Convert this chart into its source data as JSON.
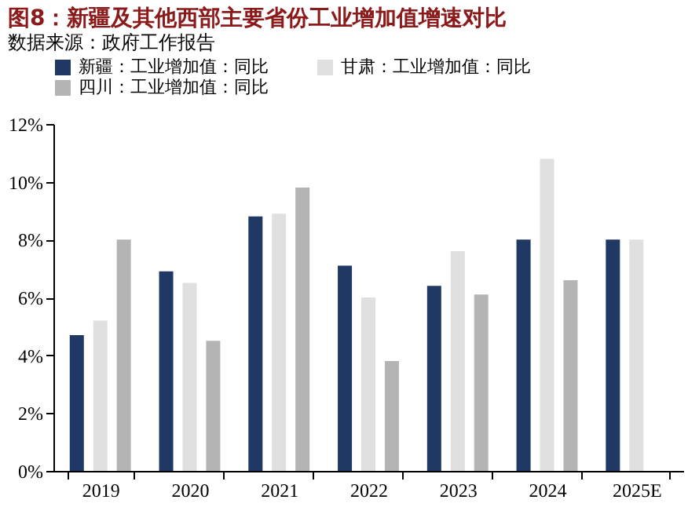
{
  "chart_data": {
    "type": "bar",
    "title": "图8：新疆及其他西部主要省份工业增加值增速对比",
    "categories": [
      "2019",
      "2020",
      "2021",
      "2022",
      "2023",
      "2024",
      "2025E"
    ],
    "series": [
      {
        "name": "新疆：工业增加值：同比",
        "color": "#1f3864",
        "values": [
          4.7,
          6.9,
          8.8,
          7.1,
          6.4,
          8.0,
          8.0
        ]
      },
      {
        "name": "甘肃：工业增加值：同比",
        "color": "#e0e0e0",
        "values": [
          5.2,
          6.5,
          8.9,
          6.0,
          7.6,
          10.8,
          8.0
        ]
      },
      {
        "name": "四川：工业增加值：同比",
        "color": "#b4b4b4",
        "values": [
          8.0,
          4.5,
          9.8,
          3.8,
          6.1,
          6.6,
          null
        ]
      }
    ],
    "ylim": [
      0,
      12
    ],
    "yticks": [
      {
        "value": 0,
        "label": "0%"
      },
      {
        "value": 2,
        "label": "2%"
      },
      {
        "value": 4,
        "label": "4%"
      },
      {
        "value": 6,
        "label": "6%"
      },
      {
        "value": 8,
        "label": "8%"
      },
      {
        "value": 10,
        "label": "10%"
      },
      {
        "value": 12,
        "label": "12%"
      }
    ],
    "grid": false,
    "legend": "top",
    "annotations": [
      "数据来源：政府工作报告"
    ]
  }
}
